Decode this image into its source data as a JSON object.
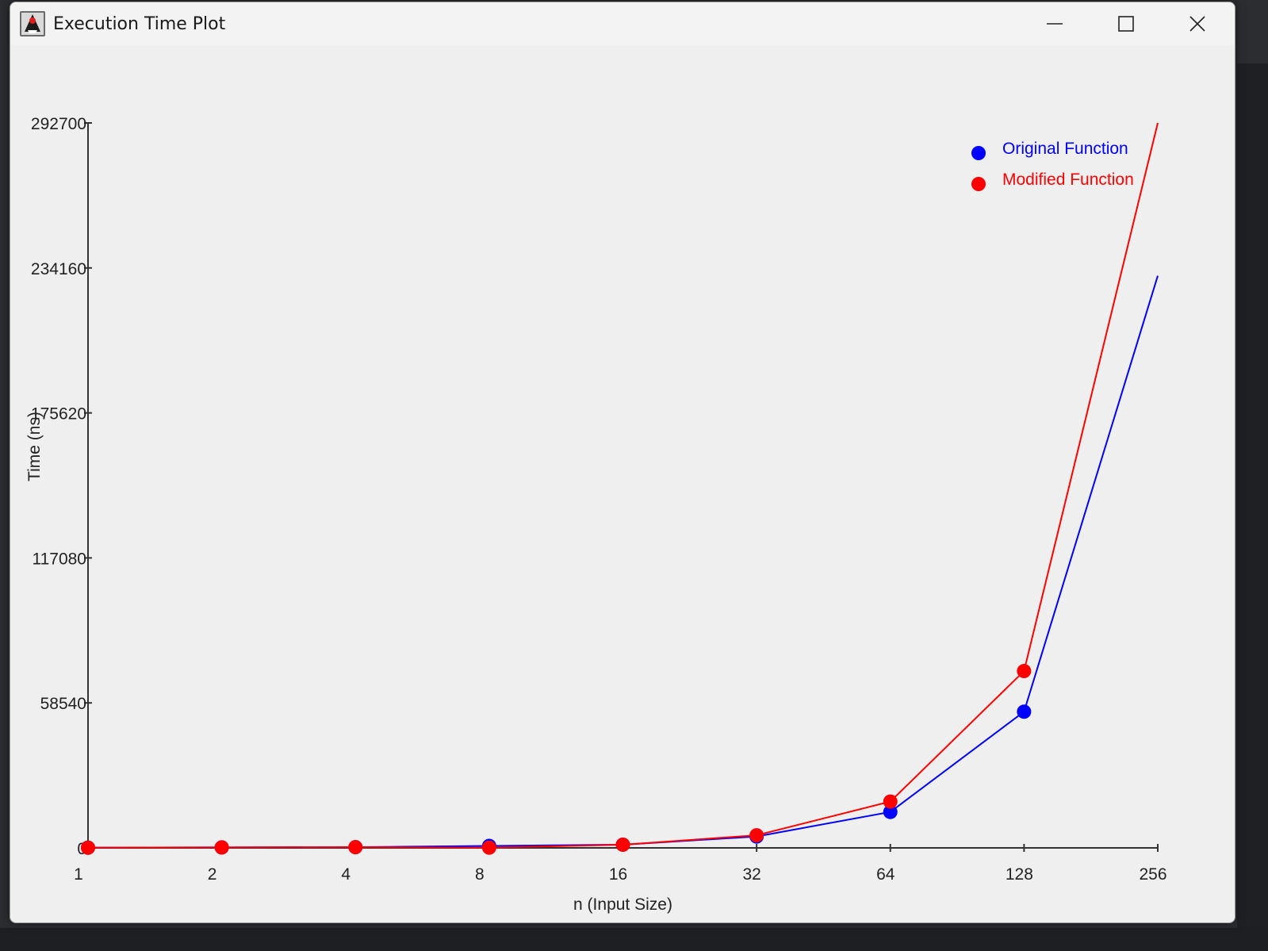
{
  "window": {
    "title": "Execution Time Plot",
    "icon": "java-duke-icon"
  },
  "chart_data": {
    "type": "line",
    "title": "",
    "xlabel": "n (Input Size)",
    "ylabel": "Time (ns)",
    "x": [
      1,
      2,
      4,
      8,
      16,
      32,
      64,
      128,
      256
    ],
    "x_tick_labels": [
      "1",
      "2",
      "4",
      "8",
      "16",
      "32",
      "64",
      "128",
      "256"
    ],
    "x_scale": "log2",
    "y_ticks": [
      0,
      58540,
      117080,
      175620,
      234160,
      292700
    ],
    "y_tick_labels": [
      "0",
      "58540",
      "117080",
      "175620",
      "234160",
      "292700"
    ],
    "ylim": [
      0,
      292700
    ],
    "grid": false,
    "legend_position": "top-right",
    "series": [
      {
        "name": "Original Function",
        "color": "#0000ff",
        "values": [
          100,
          200,
          300,
          800,
          1300,
          4600,
          14500,
          55000,
          231000
        ]
      },
      {
        "name": "Modified Function",
        "color": "#ff0000",
        "values": [
          100,
          200,
          300,
          100,
          1300,
          5100,
          18700,
          71400,
          292700
        ]
      }
    ]
  }
}
